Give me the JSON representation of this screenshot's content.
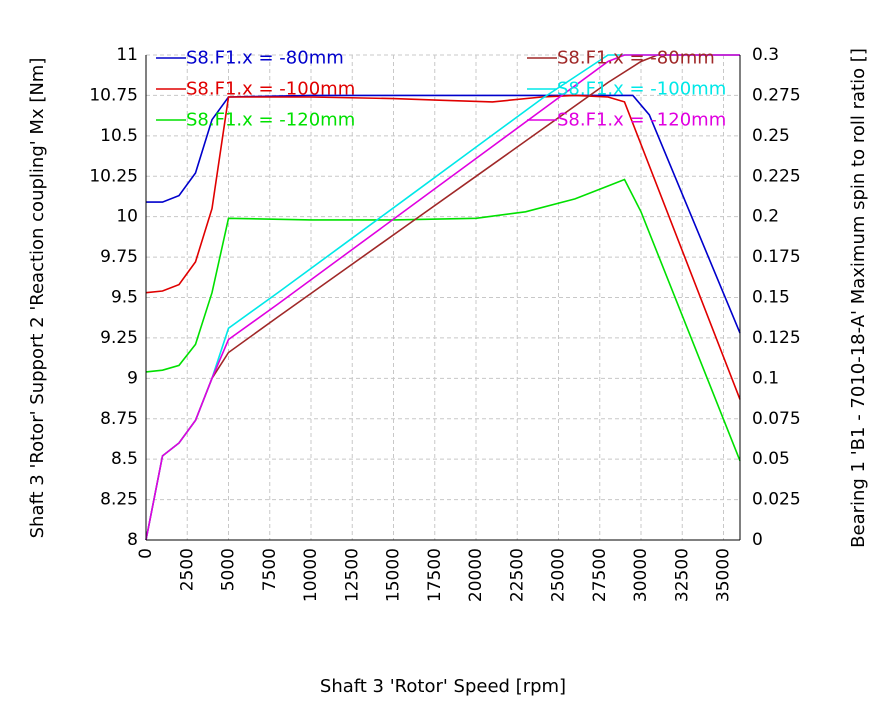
{
  "chart_data": {
    "type": "line",
    "xlabel": "Shaft 3 'Rotor' Speed [rpm]",
    "ylabel_left": "Shaft 3 'Rotor' Support 2 'Reaction coupling' Mx [Nm]",
    "ylabel_right": "Bearing 1 'B1 - 7010-18-A' Maximum spin to roll ratio []",
    "xlim": [
      0,
      36000
    ],
    "ylim_left": [
      8,
      11
    ],
    "ylim_right": [
      0,
      0.3
    ],
    "x_ticks": [
      "0",
      "2500",
      "5000",
      "7500",
      "10000",
      "12500",
      "15000",
      "17500",
      "20000",
      "22500",
      "25000",
      "27500",
      "30000",
      "32500",
      "35000"
    ],
    "y_left_ticks": [
      "8",
      "8.25",
      "8.5",
      "8.75",
      "9",
      "9.25",
      "9.5",
      "9.75",
      "10",
      "10.25",
      "10.5",
      "10.75",
      "11"
    ],
    "y_right_ticks": [
      "0",
      "0.025",
      "0.05",
      "0.075",
      "0.1",
      "0.125",
      "0.15",
      "0.175",
      "0.2",
      "0.225",
      "0.25",
      "0.275",
      "0.3"
    ],
    "grid": true,
    "series": [
      {
        "name": "S8.F1.x = -80mm",
        "axis": "left",
        "color": "#0000cc",
        "x": [
          0,
          1000,
          2000,
          3000,
          4000,
          5000,
          10000,
          15000,
          20000,
          25000,
          28500,
          29500,
          30500,
          36000
        ],
        "y": [
          10.09,
          10.09,
          10.13,
          10.27,
          10.6,
          10.74,
          10.75,
          10.75,
          10.75,
          10.75,
          10.75,
          10.75,
          10.63,
          9.28
        ]
      },
      {
        "name": "S8.F1.x = -100mm",
        "axis": "left",
        "color": "#e00000",
        "x": [
          0,
          1000,
          2000,
          3000,
          4000,
          5000,
          10000,
          15000,
          18000,
          21000,
          24000,
          26000,
          28000,
          29000,
          36000
        ],
        "y": [
          9.53,
          9.54,
          9.58,
          9.72,
          10.05,
          10.74,
          10.74,
          10.73,
          10.72,
          10.71,
          10.74,
          10.75,
          10.74,
          10.71,
          8.87
        ]
      },
      {
        "name": "S8.F1.x = -120mm",
        "axis": "left",
        "color": "#00e000",
        "x": [
          0,
          1000,
          2000,
          3000,
          4000,
          5000,
          10000,
          15000,
          20000,
          23000,
          26000,
          28000,
          29000,
          30000,
          36000
        ],
        "y": [
          9.04,
          9.05,
          9.08,
          9.21,
          9.53,
          9.99,
          9.98,
          9.98,
          9.99,
          10.03,
          10.11,
          10.19,
          10.23,
          10.03,
          8.49
        ]
      },
      {
        "name": "S8.F1.x = -80mm",
        "axis": "right",
        "color": "#a02828",
        "x": [
          0,
          1000,
          2000,
          3000,
          4000,
          5000,
          8000,
          12000,
          16000,
          20000,
          24000,
          28000,
          30000,
          31000,
          36000
        ],
        "y": [
          0.0,
          0.052,
          0.06,
          0.074,
          0.1,
          0.116,
          0.138,
          0.167,
          0.196,
          0.225,
          0.254,
          0.283,
          0.296,
          0.3,
          0.3
        ]
      },
      {
        "name": "S8.F1.x = -100mm",
        "axis": "right",
        "color": "#00e8e8",
        "x": [
          0,
          1000,
          2000,
          3000,
          4000,
          5000,
          8000,
          12000,
          16000,
          20000,
          24000,
          28000,
          29000,
          30000,
          36000
        ],
        "y": [
          0.0,
          0.052,
          0.06,
          0.074,
          0.1,
          0.131,
          0.153,
          0.183,
          0.213,
          0.243,
          0.273,
          0.3,
          0.3,
          0.3,
          0.3
        ]
      },
      {
        "name": "S8.F1.x = -120mm",
        "axis": "right",
        "color": "#e000e0",
        "x": [
          0,
          1000,
          2000,
          3000,
          4000,
          5000,
          8000,
          12000,
          16000,
          20000,
          24000,
          28000,
          29000,
          30000,
          36000
        ],
        "y": [
          0.0,
          0.052,
          0.06,
          0.074,
          0.1,
          0.124,
          0.146,
          0.176,
          0.206,
          0.236,
          0.266,
          0.296,
          0.3,
          0.3,
          0.3
        ]
      }
    ]
  }
}
